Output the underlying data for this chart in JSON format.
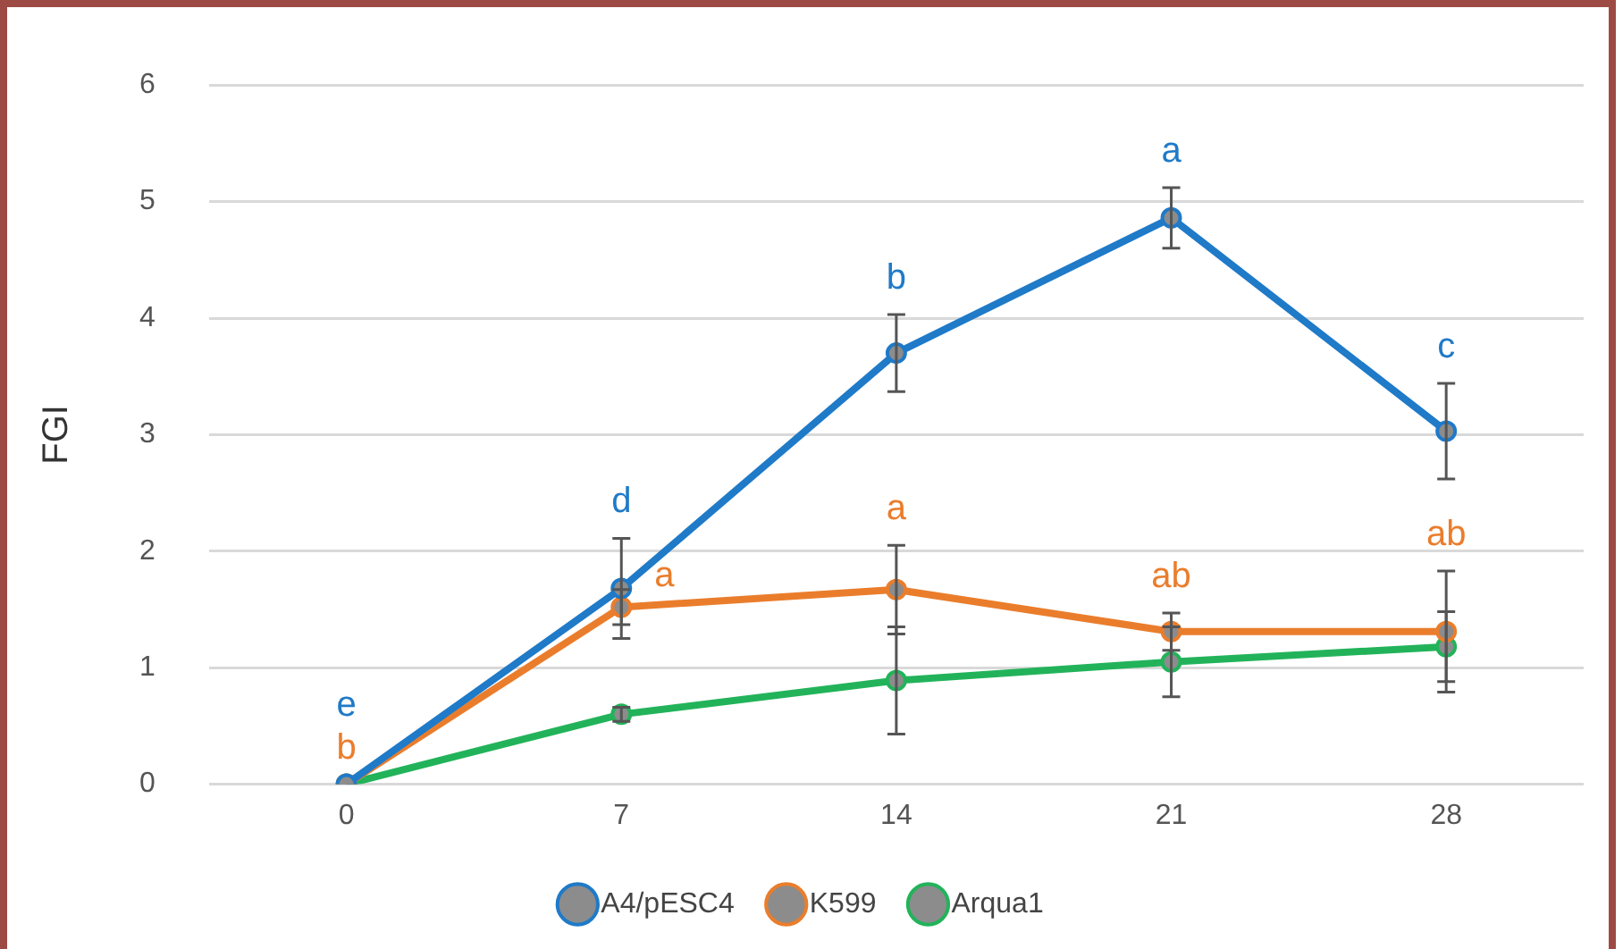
{
  "chart_data": {
    "type": "line",
    "ylabel": "FGI",
    "x": [
      0,
      7,
      14,
      21,
      28
    ],
    "xlim": [
      -3.5,
      31.5
    ],
    "xticks": [
      0,
      7,
      14,
      21,
      28
    ],
    "ylim": [
      0,
      6
    ],
    "yticks": [
      0,
      1,
      2,
      3,
      4,
      5,
      6
    ],
    "grid": "y",
    "legend": "bottom",
    "marker": "circle",
    "line_style": "solid",
    "series": [
      {
        "name": "A4/pESC4",
        "color": "#1f7ac8",
        "values": [
          0,
          1.68,
          3.7,
          4.86,
          3.03
        ],
        "errors": [
          null,
          0.43,
          0.33,
          0.26,
          0.41
        ]
      },
      {
        "name": "K599",
        "color": "#ea7d2c",
        "values": [
          0,
          1.52,
          1.67,
          1.31,
          1.31
        ],
        "errors": [
          null,
          0.15,
          0.38,
          0.16,
          0.52
        ]
      },
      {
        "name": "Arqua1",
        "color": "#22b35a",
        "values": [
          0,
          0.6,
          0.89,
          1.05,
          1.18
        ],
        "errors": [
          null,
          0.06,
          0.46,
          0.3,
          0.3
        ]
      }
    ],
    "annotations": [
      {
        "text": "e",
        "x": 0,
        "y": 0
      },
      {
        "text": "d",
        "x": 7,
        "y": 1.68
      },
      {
        "text": "b",
        "x": 14,
        "y": 3.7
      },
      {
        "text": "a",
        "x": 21,
        "y": 4.86
      },
      {
        "text": "c",
        "x": 28,
        "y": 3.03
      },
      {
        "text": "b",
        "x": 0,
        "y": 0
      },
      {
        "text": "a",
        "x": 7,
        "y": 1.52
      },
      {
        "text": "a",
        "x": 14,
        "y": 1.67
      },
      {
        "text": "ab",
        "x": 21,
        "y": 1.31
      },
      {
        "text": "ab",
        "x": 28,
        "y": 1.31
      }
    ]
  }
}
